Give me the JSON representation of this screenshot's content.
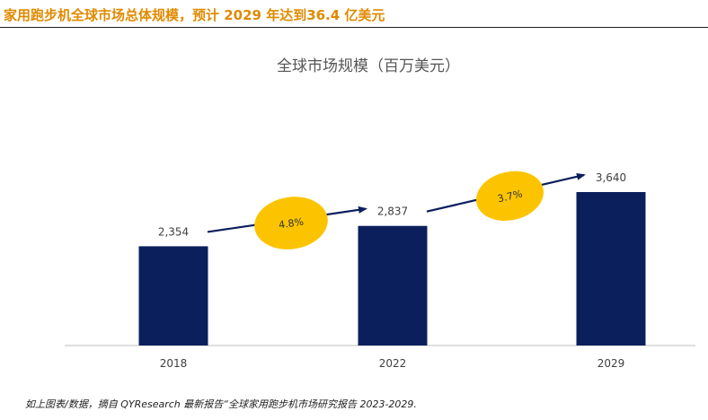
{
  "header": {
    "title": "家用跑步机全球市场总体规模，预计 2029 年达到36.4 亿美元"
  },
  "footnote": "如上图表/数据，摘自 QYResearch 最新报告“全球家用跑步机市场研究报告 2023-2029.",
  "colors": {
    "headline": "#e08a00",
    "bar": "#0b1f5c",
    "bubble": "#fcc400",
    "arrow": "#0b1f5c"
  },
  "chart_data": {
    "type": "bar",
    "title": "全球市场规模（百万美元）",
    "categories": [
      "2018",
      "2022",
      "2029"
    ],
    "values": [
      2354,
      2837,
      3640
    ],
    "value_labels": [
      "2,354",
      "2,837",
      "3,640"
    ],
    "growth_annotations": [
      {
        "from": "2018",
        "to": "2022",
        "label": "4.8%"
      },
      {
        "from": "2022",
        "to": "2029",
        "label": "3.7%"
      }
    ],
    "xlabel": "",
    "ylabel": "",
    "grid": false,
    "legend": "none"
  }
}
